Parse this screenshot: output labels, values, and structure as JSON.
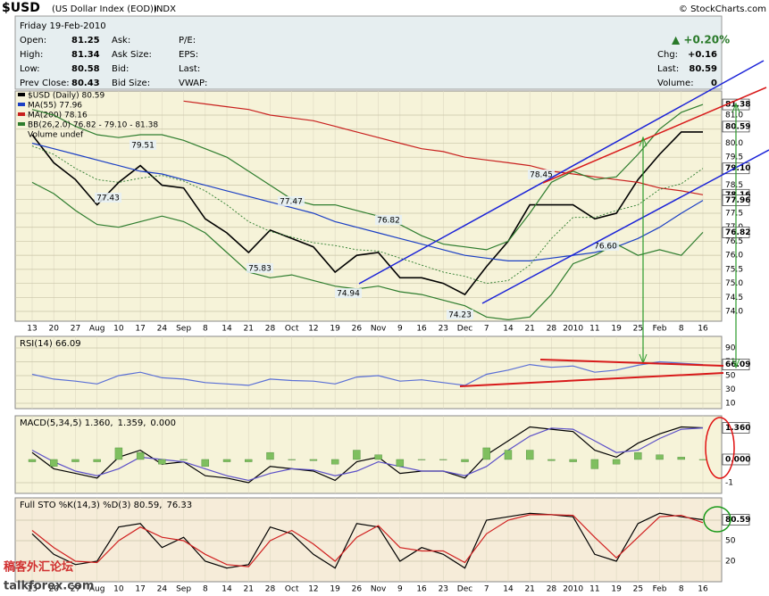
{
  "header": {
    "symbol": "$USD",
    "name": "(US Dollar Index (EOD))",
    "exchange": "INDX",
    "copyright": "© StockCharts.com",
    "date": "Friday  19-Feb-2010",
    "rows": [
      [
        "Open:",
        "81.25",
        "Ask:",
        "P/E:"
      ],
      [
        "High:",
        "81.34",
        "Ask Size:",
        "EPS:"
      ],
      [
        "Low:",
        "80.58",
        "Bid:",
        "Last:"
      ],
      [
        "Prev Close:",
        "80.43",
        "Bid Size:",
        "VWAP:"
      ]
    ],
    "change_pct": "▲ +0.20%",
    "chg_label": "Chg:",
    "chg": "+0.16",
    "last_label": "Last:",
    "last": "80.59",
    "volume_label": "Volume:",
    "volume": "0",
    "watermark": "稿客外汇论坛",
    "watermark_url": "talkforex.com"
  },
  "chart_data": [
    {
      "type": "line",
      "title_parts": [],
      "categories": [
        "13",
        "20",
        "27",
        "Aug",
        "10",
        "17",
        "24",
        "Sep",
        "8",
        "14",
        "21",
        "28",
        "Oct",
        "12",
        "19",
        "26",
        "Nov",
        "9",
        "16",
        "23",
        "Dec",
        "7",
        "14",
        "21",
        "28",
        "2010",
        "11",
        "19",
        "25",
        "Feb",
        "8",
        "16"
      ],
      "series": [
        {
          "name": "$USD (Daily) 80.59",
          "color": "#000000",
          "values": [
            80.3,
            79.3,
            78.7,
            77.8,
            78.6,
            79.2,
            78.5,
            78.4,
            77.3,
            76.8,
            76.1,
            76.9,
            76.6,
            76.3,
            75.4,
            76.0,
            76.1,
            75.2,
            75.2,
            75.0,
            74.6,
            75.6,
            76.5,
            77.8,
            77.8,
            77.8,
            77.3,
            77.5,
            78.7,
            79.6,
            80.4,
            80.4
          ]
        },
        {
          "name": "MA(55) 77.96",
          "color": "#1b3fc4",
          "values": [
            80.0,
            79.8,
            79.6,
            79.4,
            79.2,
            79.0,
            78.9,
            78.7,
            78.5,
            78.3,
            78.1,
            77.9,
            77.7,
            77.5,
            77.2,
            77.0,
            76.8,
            76.6,
            76.4,
            76.2,
            76.0,
            75.9,
            75.8,
            75.8,
            75.9,
            76.0,
            76.1,
            76.3,
            76.6,
            77.0,
            77.5,
            77.96
          ]
        },
        {
          "name": "MA(200) 78.16",
          "color": "#c8201e",
          "values": [
            null,
            null,
            null,
            null,
            null,
            null,
            null,
            81.5,
            81.4,
            81.3,
            81.2,
            81.0,
            80.9,
            80.8,
            80.6,
            80.4,
            80.2,
            80.0,
            79.8,
            79.7,
            79.5,
            79.4,
            79.3,
            79.2,
            79.0,
            78.9,
            78.8,
            78.7,
            78.6,
            78.4,
            78.3,
            78.16
          ]
        },
        {
          "name": "BB(26,2.0) 76.82 - 79.10 - 81.38",
          "color": "#2e7d2e",
          "values": [
            79.9,
            79.6,
            79.1,
            78.7,
            78.6,
            78.75,
            78.85,
            78.65,
            78.3,
            77.8,
            77.2,
            76.85,
            76.65,
            76.45,
            76.35,
            76.2,
            76.15,
            75.9,
            75.65,
            75.4,
            75.25,
            75.0,
            75.1,
            75.65,
            76.6,
            77.35,
            77.35,
            77.6,
            77.8,
            78.35,
            78.55,
            79.1
          ],
          "upper": [
            81.2,
            81.0,
            80.6,
            80.3,
            80.2,
            80.3,
            80.3,
            80.1,
            79.8,
            79.5,
            79.0,
            78.5,
            78.0,
            77.8,
            77.8,
            77.6,
            77.4,
            77.1,
            76.7,
            76.4,
            76.3,
            76.2,
            76.5,
            77.5,
            78.6,
            79.0,
            78.7,
            78.8,
            79.6,
            80.5,
            81.1,
            81.38
          ],
          "lower": [
            78.6,
            78.2,
            77.6,
            77.1,
            77.0,
            77.2,
            77.4,
            77.2,
            76.8,
            76.1,
            75.4,
            75.2,
            75.3,
            75.1,
            74.9,
            74.8,
            74.9,
            74.7,
            74.6,
            74.4,
            74.2,
            73.8,
            73.7,
            73.8,
            74.6,
            75.7,
            76.0,
            76.4,
            76.0,
            76.2,
            76.0,
            76.82
          ]
        }
      ],
      "volume_label": "Volume undef",
      "annotations": [
        79.51,
        77.43,
        75.83,
        77.47,
        74.94,
        76.82,
        74.23,
        78.45,
        {
          "value": 76.6,
          "label": "76.60"
        }
      ],
      "ylim": [
        73.65,
        81.86
      ],
      "yticks": [
        {
          "value": 74,
          "label": "74.0"
        },
        74.5,
        {
          "value": 75,
          "label": "75.0"
        },
        75.5,
        {
          "value": 76,
          "label": "76.0"
        },
        76.5,
        {
          "value": 77,
          "label": "77.0"
        },
        77.5,
        {
          "value": 78,
          "label": "78.0"
        },
        78.5,
        {
          "value": 79,
          "label": "79.0"
        },
        79.5,
        {
          "value": 80,
          "label": "80.0"
        },
        80.5,
        {
          "value": 81,
          "label": "81.0"
        }
      ],
      "tags": [
        81.38,
        80.59,
        {
          "value": 79.1,
          "label": "79.10"
        },
        78.16,
        77.96,
        76.82
      ],
      "grid": true
    },
    {
      "type": "line",
      "title_parts": [
        {
          "text": "RSI(14) 66.09",
          "color": "#000000"
        }
      ],
      "series": [
        {
          "name": "RSI(14)",
          "color": "#5a6fd6",
          "values": [
            52,
            45,
            42,
            38,
            50,
            55,
            47,
            45,
            40,
            38,
            36,
            45,
            43,
            42,
            38,
            48,
            50,
            42,
            44,
            40,
            36,
            52,
            58,
            66,
            62,
            64,
            55,
            58,
            65,
            70,
            68,
            66.09
          ]
        }
      ],
      "ylim": [
        2.3,
        106.8
      ],
      "yticks": [
        90,
        70,
        50,
        30,
        10
      ],
      "tags": [
        66.09
      ],
      "grid": true
    },
    {
      "type": "line",
      "title_parts": [
        {
          "text": "MACD(5,34,5) 1.360,",
          "color": "#000000"
        },
        {
          "text": "1.359,",
          "color": "#5b4fc8"
        },
        {
          "text": "0.000",
          "color": "#7fbf5f"
        }
      ],
      "series": [
        {
          "name": "MACD",
          "color": "#000000",
          "values": [
            0.3,
            -0.4,
            -0.6,
            -0.8,
            0.1,
            0.4,
            -0.2,
            -0.1,
            -0.7,
            -0.8,
            -1.0,
            -0.3,
            -0.4,
            -0.5,
            -0.9,
            -0.1,
            0.1,
            -0.6,
            -0.5,
            -0.5,
            -0.8,
            0.2,
            0.8,
            1.4,
            1.3,
            1.2,
            0.4,
            0.1,
            0.7,
            1.1,
            1.4,
            1.36
          ]
        },
        {
          "name": "Signal",
          "color": "#5b4fc8",
          "values": [
            0.4,
            -0.1,
            -0.5,
            -0.7,
            -0.4,
            0.1,
            0.0,
            -0.1,
            -0.4,
            -0.7,
            -0.9,
            -0.6,
            -0.4,
            -0.45,
            -0.7,
            -0.5,
            -0.1,
            -0.3,
            -0.5,
            -0.5,
            -0.7,
            -0.3,
            0.4,
            1.0,
            1.35,
            1.3,
            0.8,
            0.3,
            0.4,
            0.9,
            1.3,
            1.359
          ]
        },
        {
          "name": "Histogram",
          "color": "#7fbf5f",
          "kind": "bar",
          "values": [
            -0.1,
            -0.3,
            -0.1,
            -0.1,
            0.5,
            0.3,
            -0.2,
            0,
            -0.3,
            -0.1,
            -0.1,
            0.3,
            0,
            -0.05,
            -0.2,
            0.4,
            0.2,
            -0.3,
            0,
            0,
            -0.1,
            0.5,
            0.4,
            0.4,
            -0.05,
            -0.1,
            -0.4,
            -0.2,
            0.3,
            0.2,
            0.1,
            0
          ]
        }
      ],
      "ylim": [
        -1.46,
        1.88
      ],
      "yticks": [
        -1
      ],
      "tags": [
        {
          "value": 1.36,
          "label": "1.360"
        },
        {
          "value": 0,
          "label": "0.000"
        }
      ],
      "grid": true
    },
    {
      "type": "line",
      "title_parts": [
        {
          "text": "Full STO %K(14,3) %D(3) 80.59,",
          "color": "#000000"
        },
        {
          "text": "76.33",
          "color": "#d02020"
        }
      ],
      "categories": [
        "13",
        "20",
        "27",
        "Aug",
        "10",
        "17",
        "24",
        "Sep",
        "8",
        "14",
        "21",
        "28",
        "Oct",
        "12",
        "19",
        "26",
        "Nov",
        "9",
        "16",
        "23",
        "Dec",
        "7",
        "14",
        "21",
        "28",
        "2010",
        "11",
        "19",
        "25",
        "Feb",
        "8",
        "16"
      ],
      "series": [
        {
          "name": "%K",
          "color": "#000000",
          "values": [
            60,
            30,
            15,
            20,
            70,
            75,
            40,
            55,
            20,
            10,
            15,
            70,
            60,
            30,
            10,
            75,
            70,
            20,
            40,
            30,
            10,
            80,
            85,
            90,
            88,
            85,
            30,
            20,
            75,
            90,
            85,
            80.59
          ]
        },
        {
          "name": "%D",
          "color": "#d02020",
          "values": [
            65,
            40,
            20,
            18,
            50,
            70,
            55,
            50,
            30,
            15,
            12,
            50,
            65,
            45,
            20,
            55,
            72,
            40,
            35,
            35,
            18,
            60,
            80,
            88,
            88,
            87,
            55,
            25,
            55,
            85,
            87,
            76.33
          ]
        }
      ],
      "ylim": [
        -10,
        112.6
      ],
      "yticks": [
        80,
        50,
        20
      ],
      "tags": [
        80.59
      ],
      "grid": true
    }
  ]
}
